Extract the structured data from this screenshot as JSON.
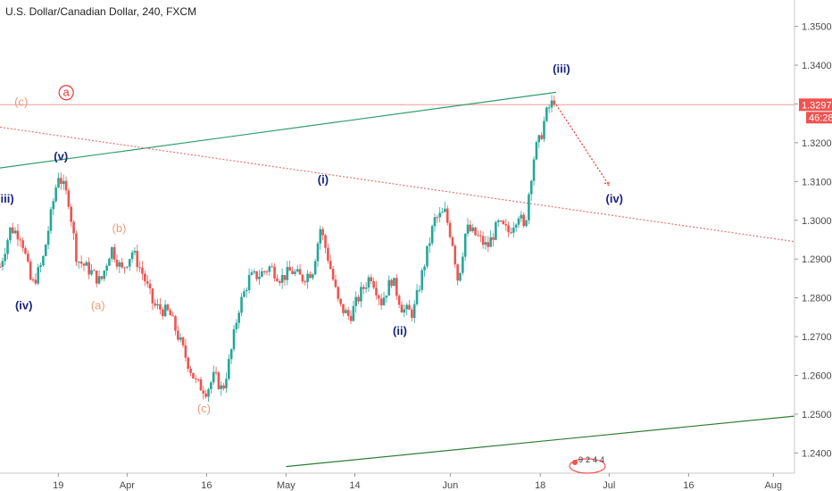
{
  "chart_data": {
    "type": "candlestick",
    "title": "U.S. Dollar/Canadian Dollar, 240, FXCM",
    "xlabel": "",
    "ylabel": "",
    "ylim": [
      1.2348,
      1.3568
    ],
    "yticks": [
      "1.35000",
      "1.34000",
      "1.33000",
      "1.32000",
      "1.31000",
      "1.30000",
      "1.29000",
      "1.28000",
      "1.27000",
      "1.26000",
      "1.25000",
      "1.24000"
    ],
    "xticks": [
      {
        "label": "19",
        "day": 0
      },
      {
        "label": "Apr",
        "day": 13
      },
      {
        "label": "16",
        "day": 28
      },
      {
        "label": "May",
        "day": 43
      },
      {
        "label": "14",
        "day": 56
      },
      {
        "label": "Jun",
        "day": 74
      },
      {
        "label": "18",
        "day": 91
      },
      {
        "label": "Jul",
        "day": 104
      },
      {
        "label": "16",
        "day": 119
      },
      {
        "label": "Aug",
        "day": 135
      }
    ],
    "x_range_days": [
      -11,
      139
    ],
    "price_label": "1.32978",
    "countdown_label": "46:28",
    "last_price": 1.3298,
    "anchors": [
      [
        -11.0,
        1.288
      ],
      [
        -9.0,
        1.298
      ],
      [
        -7.0,
        1.296
      ],
      [
        -5.0,
        1.283
      ],
      [
        -3.0,
        1.289
      ],
      [
        0.0,
        1.312
      ],
      [
        2.0,
        1.305
      ],
      [
        3.5,
        1.29
      ],
      [
        6.0,
        1.287
      ],
      [
        8.0,
        1.284
      ],
      [
        10.0,
        1.293
      ],
      [
        12.0,
        1.287
      ],
      [
        14.0,
        1.292
      ],
      [
        16.0,
        1.286
      ],
      [
        18.0,
        1.278
      ],
      [
        21.0,
        1.276
      ],
      [
        24.0,
        1.265
      ],
      [
        26.0,
        1.258
      ],
      [
        28.0,
        1.256
      ],
      [
        29.5,
        1.26
      ],
      [
        31.0,
        1.256
      ],
      [
        32.5,
        1.265
      ],
      [
        34.0,
        1.277
      ],
      [
        36.0,
        1.285
      ],
      [
        38.0,
        1.286
      ],
      [
        40.0,
        1.288
      ],
      [
        42.0,
        1.285
      ],
      [
        44.0,
        1.287
      ],
      [
        46.0,
        1.285
      ],
      [
        48.0,
        1.287
      ],
      [
        49.5,
        1.298
      ],
      [
        51.0,
        1.29
      ],
      [
        53.0,
        1.278
      ],
      [
        55.0,
        1.275
      ],
      [
        57.0,
        1.281
      ],
      [
        59.0,
        1.286
      ],
      [
        61.0,
        1.279
      ],
      [
        63.0,
        1.285
      ],
      [
        65.0,
        1.277
      ],
      [
        67.0,
        1.276
      ],
      [
        69.0,
        1.288
      ],
      [
        71.0,
        1.3
      ],
      [
        73.0,
        1.302
      ],
      [
        74.5,
        1.294
      ],
      [
        75.5,
        1.284
      ],
      [
        77.0,
        1.298
      ],
      [
        79.0,
        1.296
      ],
      [
        81.0,
        1.293
      ],
      [
        83.0,
        1.299
      ],
      [
        85.0,
        1.297
      ],
      [
        87.0,
        1.302
      ],
      [
        88.0,
        1.297
      ],
      [
        89.0,
        1.309
      ],
      [
        90.0,
        1.318
      ],
      [
        91.0,
        1.321
      ],
      [
        92.0,
        1.327
      ],
      [
        93.0,
        1.33
      ],
      [
        94.0,
        1.3298
      ]
    ],
    "lines": [
      {
        "name": "upper-trendline",
        "color": "#2f9e6b",
        "x1": -11,
        "y1": 1.3135,
        "x2": 94,
        "y2": 1.333,
        "style": "solid"
      },
      {
        "name": "lower-trendline",
        "color": "#2e7d32",
        "x1": 43,
        "y1": 1.2365,
        "x2": 139,
        "y2": 1.2495,
        "style": "solid"
      },
      {
        "name": "descending-dotted-line",
        "color": "#e57373",
        "x1": -11,
        "y1": 1.324,
        "x2": 139,
        "y2": 1.2945,
        "style": "dotted"
      },
      {
        "name": "projection-arrow",
        "color": "#e53935",
        "x1": 94,
        "y1": 1.3298,
        "x2": 104,
        "y2": 1.309,
        "style": "dotted"
      }
    ],
    "annotations": [
      {
        "text": "(iii)",
        "day": -10.0,
        "price": 1.3045,
        "color": "#1a237e",
        "bold": true
      },
      {
        "text": "(v)",
        "day": 0.5,
        "price": 1.3155,
        "color": "#1a237e",
        "bold": true
      },
      {
        "text": "(iv)",
        "day": -6.5,
        "price": 1.277,
        "color": "#1a237e",
        "bold": true
      },
      {
        "text": "(c)",
        "day": -7.0,
        "price": 1.3295,
        "color": "#ef9a7a",
        "bold": false
      },
      {
        "text": "a",
        "day": 1.5,
        "price": 1.332,
        "color": "#e53935",
        "bold": false,
        "circled": true
      },
      {
        "text": "(b)",
        "day": 11.5,
        "price": 1.297,
        "color": "#ef9a7a",
        "bold": false
      },
      {
        "text": "(a)",
        "day": 7.5,
        "price": 1.277,
        "color": "#ef9a7a",
        "bold": false
      },
      {
        "text": "(c)",
        "day": 27.5,
        "price": 1.2505,
        "color": "#ef9a7a",
        "bold": false
      },
      {
        "text": "(i)",
        "day": 50.0,
        "price": 1.3095,
        "color": "#1a237e",
        "bold": true
      },
      {
        "text": "(ii)",
        "day": 64.5,
        "price": 1.2705,
        "color": "#1a237e",
        "bold": true
      },
      {
        "text": "(iii)",
        "day": 95.0,
        "price": 1.338,
        "color": "#1a237e",
        "bold": true
      },
      {
        "text": "(iv)",
        "day": 105.0,
        "price": 1.3045,
        "color": "#1a237e",
        "bold": true
      }
    ],
    "grid": false,
    "legend": "none",
    "colors": {
      "up": "#26a69a",
      "down": "#ef5350",
      "price_line": "#ef9a9a",
      "price_badge": "#ef5350"
    }
  },
  "events_badge": "9244"
}
